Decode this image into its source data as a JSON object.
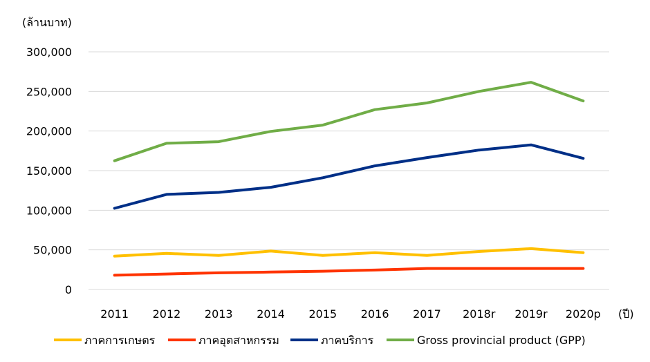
{
  "chart_data": {
    "type": "line",
    "ylabel": "(ล้านบาท)",
    "xlabel": "(ปี)",
    "categories": [
      "2011",
      "2012",
      "2013",
      "2014",
      "2015",
      "2016",
      "2017",
      "2018r",
      "2019r",
      "2020p"
    ],
    "ylim": [
      0,
      300000
    ],
    "yticks": [
      0,
      50000,
      100000,
      150000,
      200000,
      250000,
      300000
    ],
    "ytick_labels": [
      "0",
      "50,000",
      "100,000",
      "150,000",
      "200,000",
      "250,000",
      "300,000"
    ],
    "grid": "horizontal",
    "legend_position": "bottom",
    "series": [
      {
        "name": "ภาคการเกษตร",
        "color": "#FFC000",
        "values": [
          42000,
          45500,
          43000,
          48500,
          43000,
          46500,
          43000,
          48000,
          51500,
          46500
        ]
      },
      {
        "name": "ภาคอุตสาหกรรม",
        "color": "#FF3300",
        "values": [
          18000,
          19500,
          21000,
          22000,
          23000,
          24500,
          26500,
          26500,
          26500,
          26500
        ]
      },
      {
        "name": "ภาคบริการ",
        "color": "#002F87",
        "values": [
          102500,
          120000,
          122500,
          129000,
          141000,
          156000,
          166500,
          176000,
          182500,
          165500
        ]
      },
      {
        "name": "Gross provincial product (GPP)",
        "color": "#70AD47",
        "values": [
          162500,
          184500,
          186500,
          199500,
          207500,
          227000,
          235500,
          250000,
          261500,
          238000
        ]
      }
    ]
  }
}
